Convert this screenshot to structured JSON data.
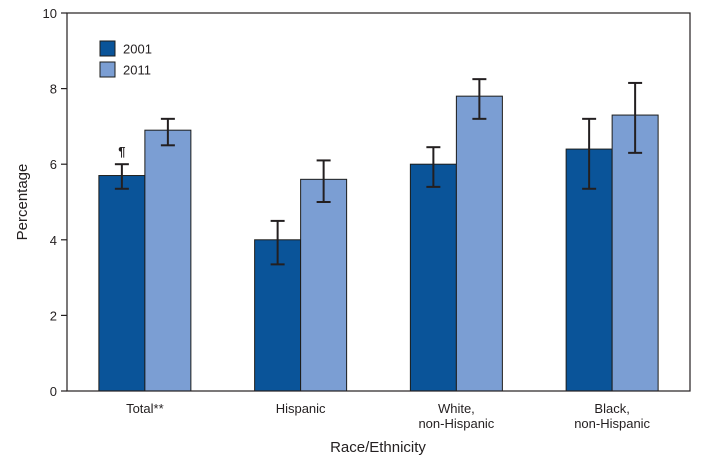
{
  "chart_data": {
    "type": "bar",
    "xlabel": "Race/Ethnicity",
    "ylabel": "Percentage",
    "ylim": [
      0,
      10
    ],
    "yticks": [
      0,
      2,
      4,
      6,
      8,
      10
    ],
    "grid": false,
    "legend_position": "top-left",
    "categories": [
      [
        "Total**"
      ],
      [
        "Hispanic"
      ],
      [
        "White,",
        "non-Hispanic"
      ],
      [
        "Black,",
        "non-Hispanic"
      ]
    ],
    "series": [
      {
        "name": "2001",
        "color": "#0a5499",
        "values": [
          5.7,
          4.0,
          6.0,
          6.4
        ],
        "ci_low": [
          5.35,
          3.35,
          5.4,
          5.35
        ],
        "ci_high": [
          6.0,
          4.5,
          6.45,
          7.2
        ]
      },
      {
        "name": "2011",
        "color": "#7b9ed3",
        "values": [
          6.9,
          5.6,
          7.8,
          7.3
        ],
        "ci_low": [
          6.5,
          5.0,
          7.2,
          6.3
        ],
        "ci_high": [
          7.2,
          6.1,
          8.25,
          8.15
        ]
      }
    ],
    "annotations": [
      {
        "text": "¶",
        "category_index": 0,
        "series_index": 0
      }
    ]
  }
}
